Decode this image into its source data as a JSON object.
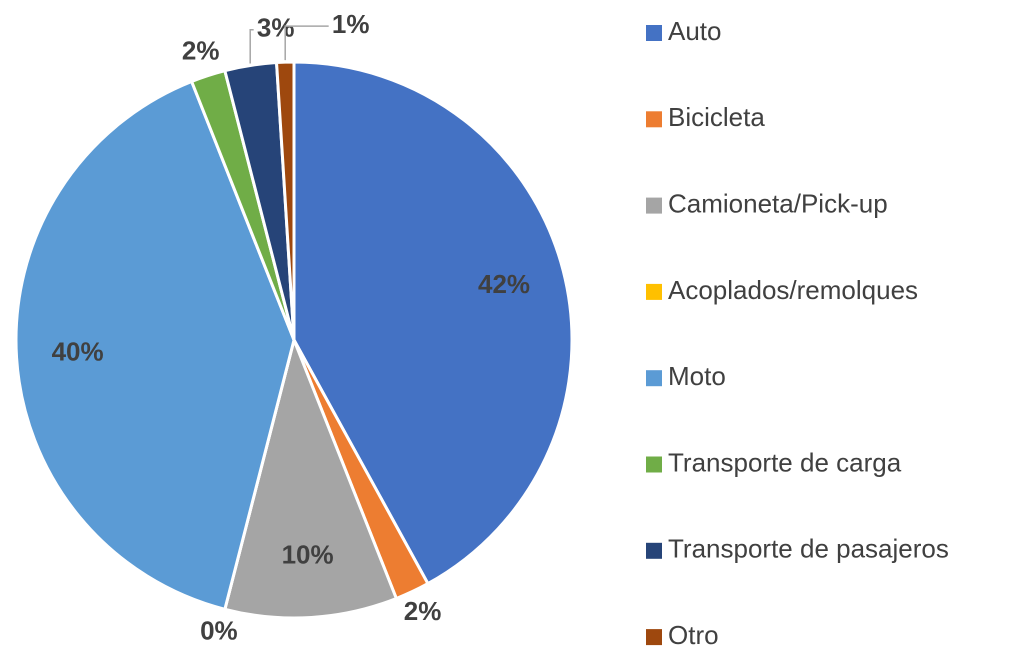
{
  "chart_data": {
    "type": "pie",
    "categories": [
      "Auto",
      "Bicicleta",
      "Camioneta/Pick-up",
      "Acoplados/remolques",
      "Moto",
      "Transporte de carga",
      "Transporte de pasajeros",
      "Otro"
    ],
    "values": [
      42,
      2,
      10,
      0,
      40,
      2,
      3,
      1
    ],
    "value_labels": [
      "42%",
      "2%",
      "10%",
      "0%",
      "40%",
      "2%",
      "3%",
      "1%"
    ],
    "colors": [
      "#4472c4",
      "#ed7d31",
      "#a5a5a5",
      "#ffc000",
      "#5b9bd5",
      "#70ad47",
      "#264478",
      "#9e480e"
    ],
    "legend": "right"
  }
}
